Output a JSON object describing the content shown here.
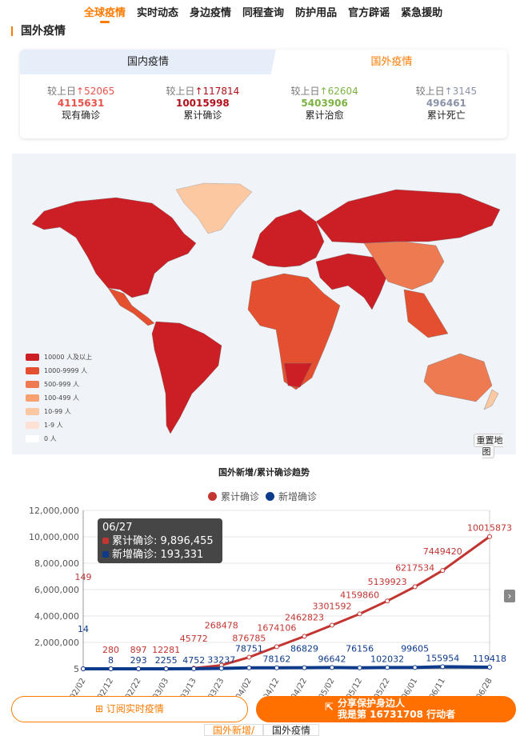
{
  "nav": [
    "全球疫情",
    "实时动态",
    "身边疫情",
    "同程查询",
    "防护用品",
    "官方辟谣",
    "紧急援助"
  ],
  "section_title": "国外疫情",
  "tabs": {
    "domestic": "国内疫情",
    "international": "国外疫情"
  },
  "stats": [
    {
      "delta_label": "较上日",
      "delta": "↑52065",
      "value": "4115631",
      "label": "现有确诊",
      "color": "#e8524a"
    },
    {
      "delta_label": "较上日",
      "delta": "↑117814",
      "value": "10015998",
      "label": "累计确诊",
      "color": "#b0101a"
    },
    {
      "delta_label": "较上日",
      "delta": "↑62604",
      "value": "5403906",
      "label": "累计治愈",
      "color": "#7cb342"
    },
    {
      "delta_label": "较上日",
      "delta": "↑3145",
      "value": "496461",
      "label": "累计死亡",
      "color": "#8a93a8"
    }
  ],
  "map": {
    "legend": [
      {
        "label": "10000 人及以上",
        "color": "#cc1f25"
      },
      {
        "label": "1000-9999 人",
        "color": "#e4502f"
      },
      {
        "label": "500-999 人",
        "color": "#ee7a52"
      },
      {
        "label": "100-499 人",
        "color": "#f9a070"
      },
      {
        "label": "10-99 人",
        "color": "#fbc8a2"
      },
      {
        "label": "1-9 人",
        "color": "#fde2d4"
      },
      {
        "label": "0 人",
        "color": "#ffffff"
      }
    ],
    "reset_button": "重置地图"
  },
  "chart_data": {
    "type": "line",
    "title": "国外新增/累计确诊趋势",
    "categories": [
      "02/02",
      "02/12",
      "02/22",
      "03/03",
      "03/13",
      "03/23",
      "04/02",
      "04/12",
      "04/22",
      "05/02",
      "05/12",
      "05/22",
      "06/01",
      "06/11",
      "06/28"
    ],
    "series": [
      {
        "name": "累计确诊",
        "color": "#c23531",
        "values": [
          149,
          280,
          897,
          12281,
          45772,
          268478,
          876785,
          1674106,
          2462823,
          3301592,
          4159860,
          5139923,
          6217534,
          7449420,
          10015873
        ]
      },
      {
        "name": "新增确诊",
        "color": "#0d3a8a",
        "values": [
          14,
          8,
          293,
          2255,
          4752,
          33237,
          78751,
          78162,
          86829,
          96642,
          76156,
          102032,
          99605,
          155954,
          119418
        ]
      }
    ],
    "yticks": [
      "5",
      "2,000,000",
      "4,000,000",
      "6,000,000",
      "8,000,000",
      "10,000,000",
      "12,000,000"
    ],
    "ylim": [
      0,
      12000000
    ],
    "grid": true,
    "legend": "top",
    "tooltip": {
      "date": "06/27",
      "rows": [
        {
          "label": "累计确诊",
          "value": "9,896,455"
        },
        {
          "label": "新增确诊",
          "value": "193,331"
        }
      ]
    }
  },
  "buttons": {
    "subscribe": "订阅实时疫情",
    "share_line1": "分享保护身边人",
    "share_line2": "我是第 16731708 行动者"
  },
  "bottom_tabs": [
    "国外新增/",
    "国外疫情"
  ]
}
